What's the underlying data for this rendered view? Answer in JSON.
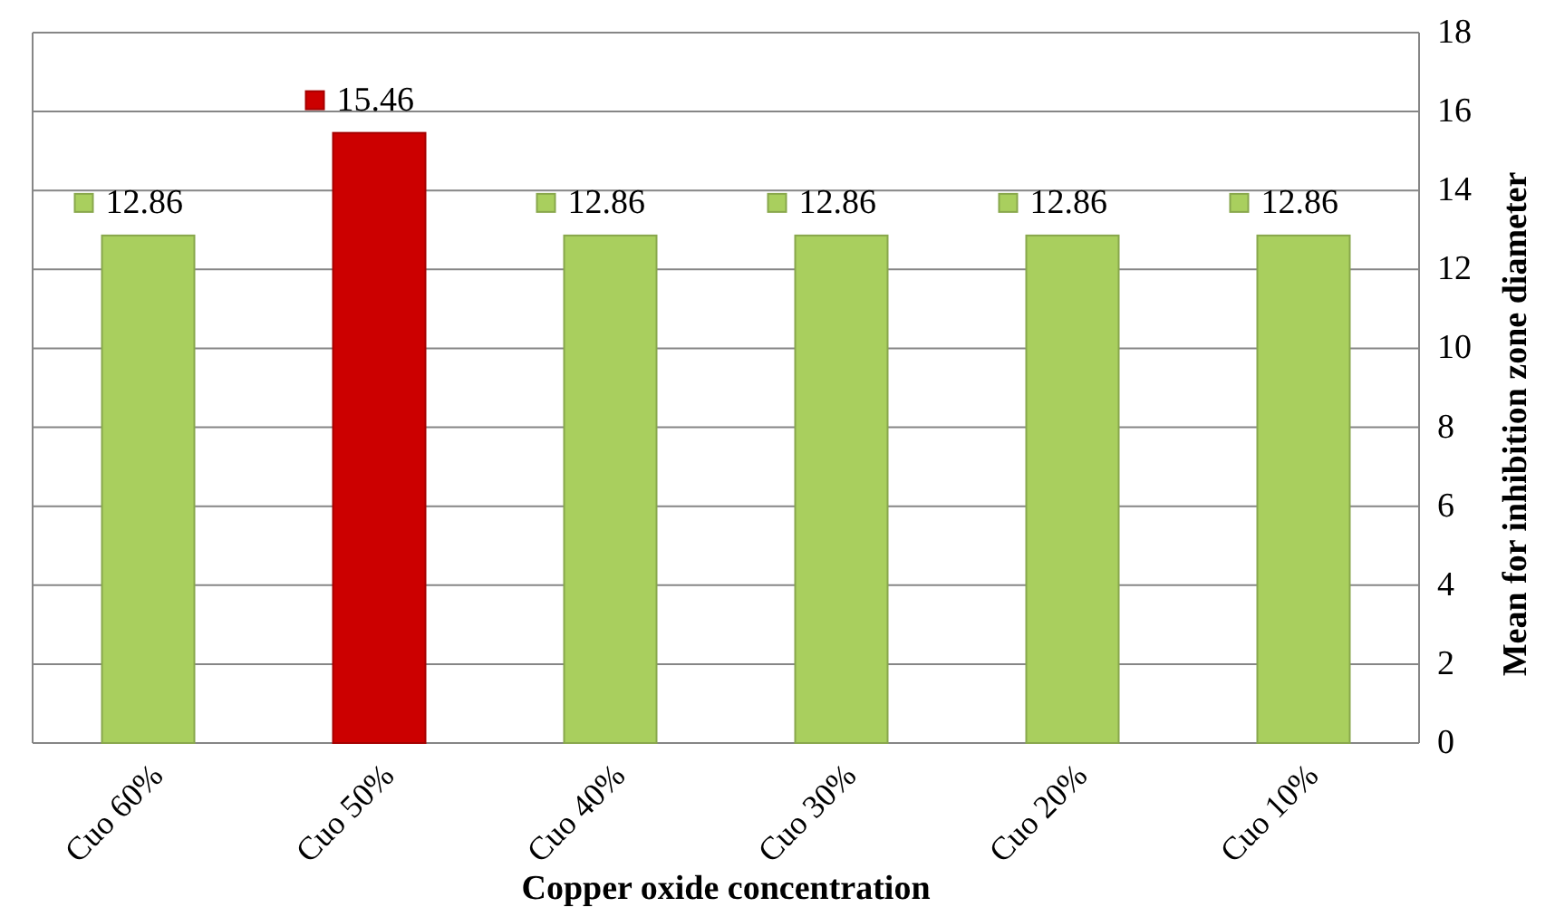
{
  "chart_data": {
    "type": "bar",
    "xlabel": "Copper oxide concentration",
    "ylabel": "Mean for inhibition zone diameter",
    "categories": [
      "Cuo 60%",
      "Cuo 50%",
      "Cuo 40%",
      "Cuo 30%",
      "Cuo 20%",
      "Cuo 10%"
    ],
    "values": [
      12.86,
      15.46,
      12.86,
      12.86,
      12.86,
      12.86
    ],
    "colors": [
      "#a9cf5e",
      "#cc0000",
      "#a9cf5e",
      "#a9cf5e",
      "#a9cf5e",
      "#a9cf5e"
    ],
    "ylim": [
      0,
      18
    ],
    "yticks": [
      0,
      2,
      4,
      6,
      8,
      10,
      12,
      14,
      16,
      18
    ],
    "grid": "y",
    "data_labels": true
  }
}
